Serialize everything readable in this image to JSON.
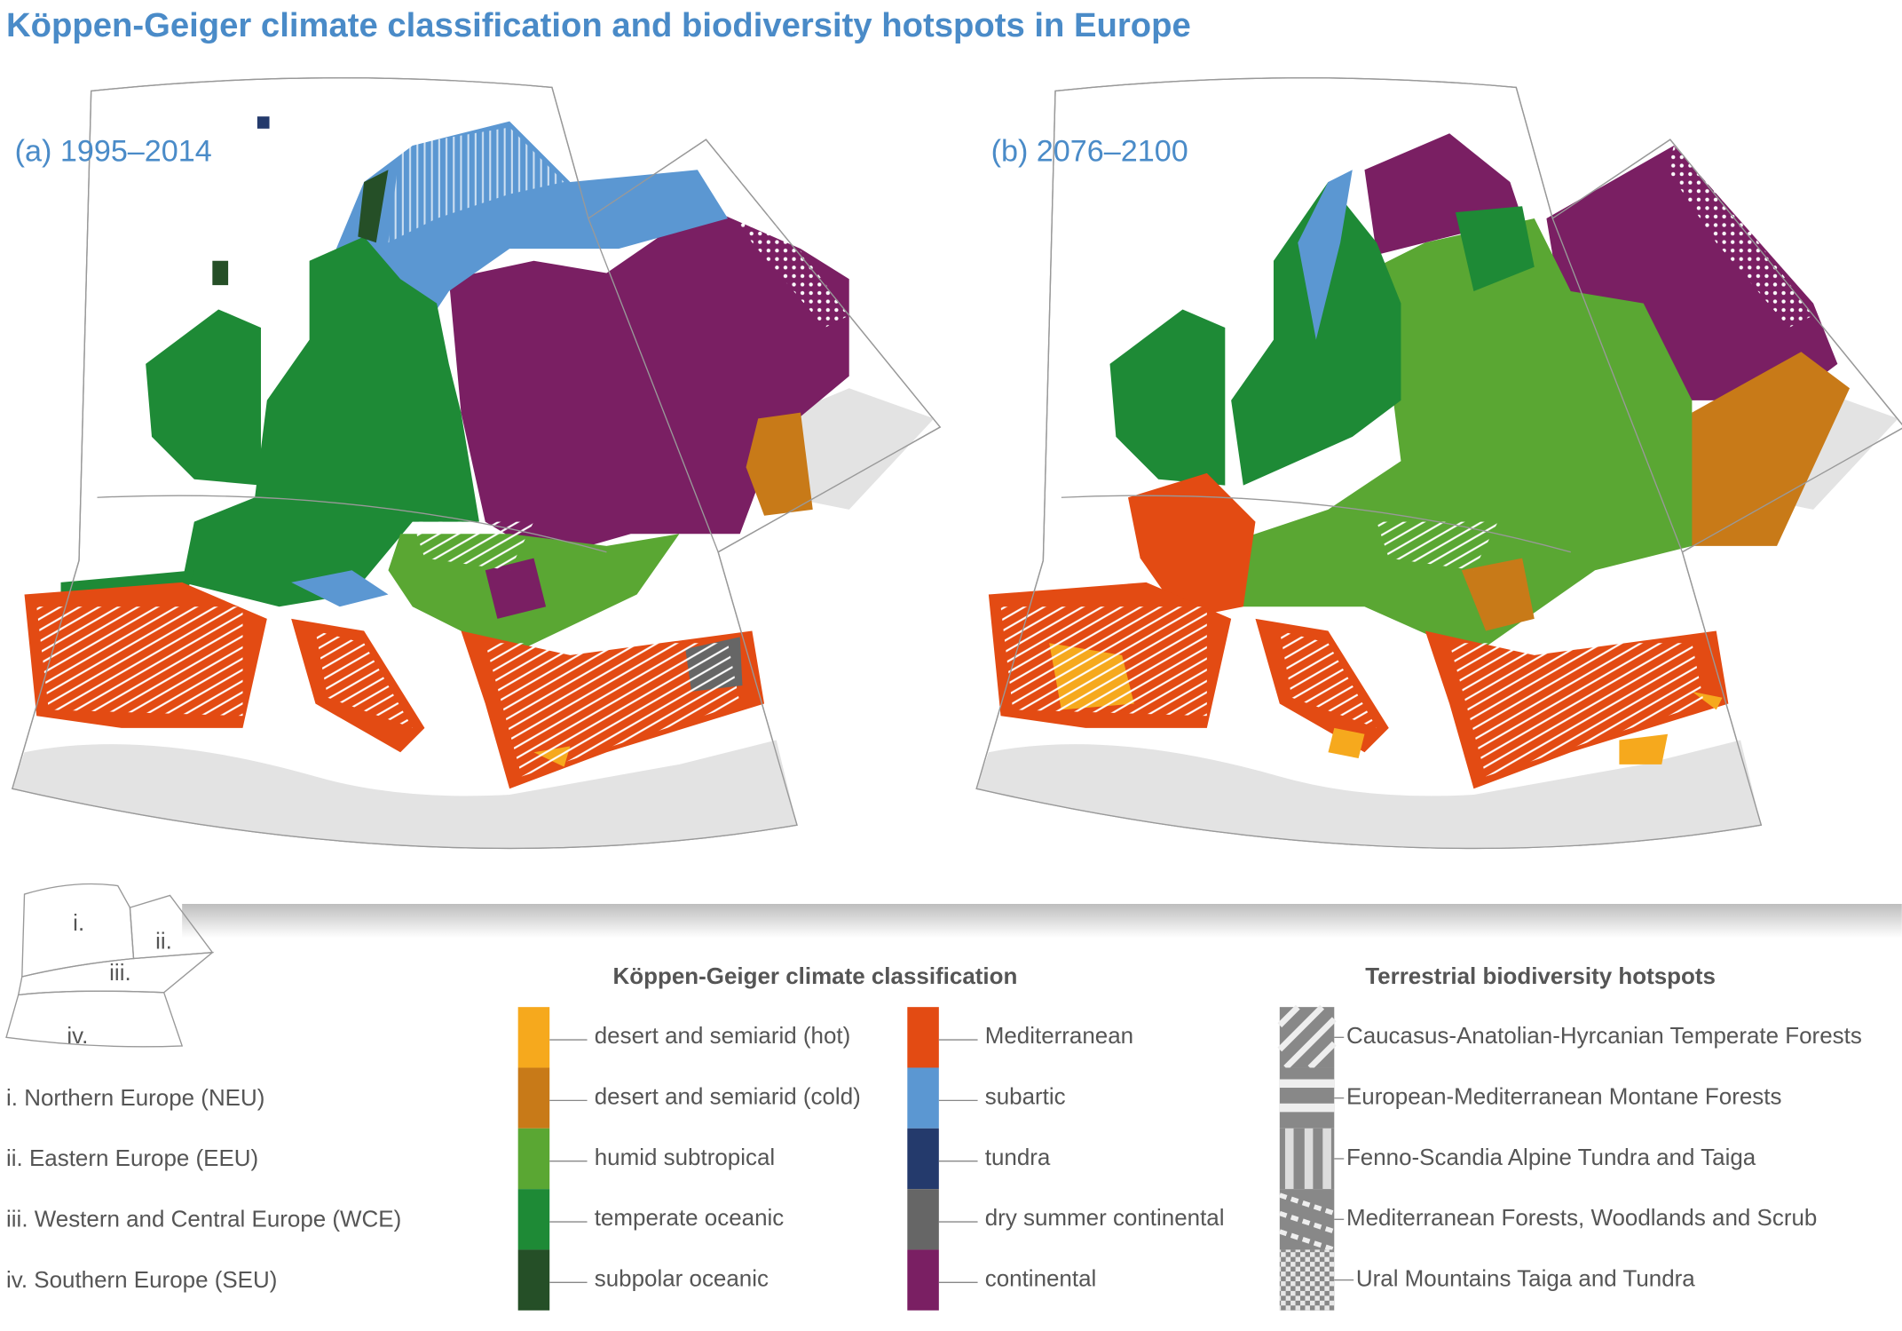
{
  "title": "Köppen-Geiger climate classification and biodiversity hotspots in Europe",
  "panels": [
    {
      "label": "(a) 1995–2014"
    },
    {
      "label": "(b) 2076–2100"
    }
  ],
  "regions_key": {
    "map_labels": [
      "i.",
      "ii.",
      "iii.",
      "iv."
    ],
    "items": [
      "i. Northern Europe (NEU)",
      "ii. Eastern Europe (EEU)",
      "iii. Western and Central Europe (WCE)",
      "iv. Southern Europe (SEU)"
    ]
  },
  "climate_legend": {
    "title": "Köppen-Geiger climate classification",
    "items": [
      {
        "label": "desert and semiarid (hot)",
        "color": "#f6a91d"
      },
      {
        "label": "desert and semiarid (cold)",
        "color": "#c87a18"
      },
      {
        "label": "humid subtropical",
        "color": "#5aa733"
      },
      {
        "label": "temperate oceanic",
        "color": "#1e8a36"
      },
      {
        "label": "subpolar oceanic",
        "color": "#254f27"
      },
      {
        "label": "Mediterranean",
        "color": "#e34b13"
      },
      {
        "label": "subartic",
        "color": "#5b97d2"
      },
      {
        "label": "tundra",
        "color": "#243a6c"
      },
      {
        "label": "dry summer continental",
        "color": "#666666"
      },
      {
        "label": "continental",
        "color": "#7a1f63"
      }
    ]
  },
  "hotspot_legend": {
    "title": "Terrestrial biodiversity hotspots",
    "items": [
      "Caucasus-Anatolian-Hyrcanian Temperate Forests",
      "European-Mediterranean Montane Forests",
      "Fenno-Scandia Alpine Tundra and Taiga",
      "Mediterranean Forests, Woodlands and Scrub",
      "Ural Mountains Taiga and Tundra"
    ]
  }
}
